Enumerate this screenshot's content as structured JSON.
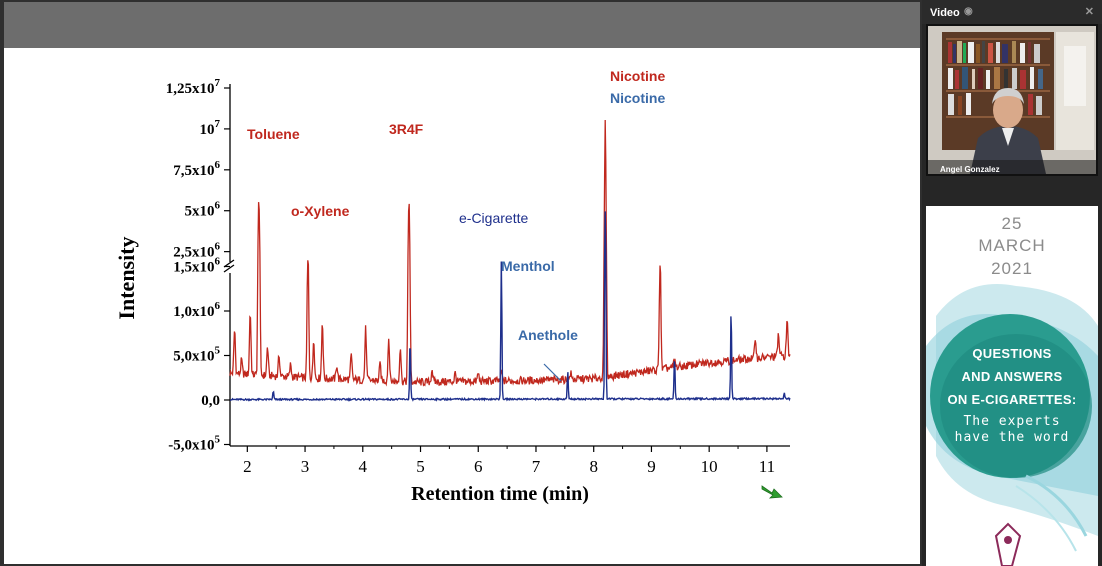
{
  "video_panel": {
    "title": "Video",
    "participant_name": "Angel Gonzalez",
    "pin_icon": "pin-icon",
    "close_icon": "close-icon"
  },
  "poster": {
    "day": "25",
    "month": "MARCH",
    "year": "2021",
    "line1": "QUESTIONS",
    "line2": "AND ANSWERS",
    "line3": "ON E-CIGARETTES:",
    "sub1": "The experts",
    "sub2": "have the word"
  },
  "chart_data": {
    "type": "line",
    "xlabel": "Retention time (min)",
    "ylabel": "Intensity",
    "xlim": [
      1.7,
      11.4
    ],
    "x_ticks": [
      2,
      3,
      4,
      5,
      6,
      7,
      8,
      9,
      10,
      11
    ],
    "y_axis_broken": true,
    "y_ticks_lower": [
      {
        "value": -500000,
        "label": "-5,0x10",
        "exp": "5"
      },
      {
        "value": 0,
        "label": "0,0",
        "exp": ""
      },
      {
        "value": 500000,
        "label": "5,0x10",
        "exp": "5"
      },
      {
        "value": 1000000,
        "label": "1,0x10",
        "exp": "6"
      },
      {
        "value": 1500000,
        "label": "1,5x10",
        "exp": "6"
      }
    ],
    "y_ticks_upper": [
      {
        "value": 2500000,
        "label": "2,5x10",
        "exp": "6"
      },
      {
        "value": 5000000,
        "label": "5x10",
        "exp": "6"
      },
      {
        "value": 7500000,
        "label": "7,5x10",
        "exp": "6"
      },
      {
        "value": 10000000,
        "label": "10",
        "exp": "7"
      },
      {
        "value": 12500000,
        "label": "1,25x10",
        "exp": "7"
      }
    ],
    "series": [
      {
        "name": "3R4F",
        "color": "#c0281e",
        "baseline": [
          [
            1.7,
            300000
          ],
          [
            3,
            250000
          ],
          [
            5,
            200000
          ],
          [
            7,
            220000
          ],
          [
            8,
            240000
          ],
          [
            9,
            330000
          ],
          [
            10,
            420000
          ],
          [
            11,
            480000
          ],
          [
            11.4,
            500000
          ]
        ],
        "peaks": [
          [
            1.78,
            800000
          ],
          [
            1.9,
            450000
          ],
          [
            2.05,
            1000000
          ],
          [
            2.2,
            5800000
          ],
          [
            2.35,
            600000
          ],
          [
            2.55,
            500000
          ],
          [
            2.75,
            400000
          ],
          [
            3.05,
            2000000
          ],
          [
            3.15,
            700000
          ],
          [
            3.3,
            900000
          ],
          [
            3.55,
            400000
          ],
          [
            3.8,
            500000
          ],
          [
            4.05,
            800000
          ],
          [
            4.3,
            400000
          ],
          [
            4.45,
            700000
          ],
          [
            4.65,
            600000
          ],
          [
            4.8,
            5700000
          ],
          [
            5.2,
            350000
          ],
          [
            5.6,
            300000
          ],
          [
            6.0,
            300000
          ],
          [
            6.4,
            320000
          ],
          [
            7.6,
            300000
          ],
          [
            8.2,
            10600000
          ],
          [
            9.15,
            1700000
          ],
          [
            9.4,
            450000
          ],
          [
            10.8,
            700000
          ],
          [
            11.2,
            750000
          ],
          [
            11.35,
            900000
          ]
        ]
      },
      {
        "name": "e-Cigarette",
        "color": "#1e2f8c",
        "baseline": [
          [
            1.7,
            5000
          ],
          [
            11.4,
            15000
          ]
        ],
        "peaks": [
          [
            2.45,
            100000
          ],
          [
            4.82,
            700000
          ],
          [
            6.4,
            1900000
          ],
          [
            7.55,
            320000
          ],
          [
            8.2,
            5000000
          ],
          [
            9.4,
            500000
          ],
          [
            10.38,
            1050000
          ],
          [
            11.3,
            80000
          ]
        ]
      }
    ],
    "annotations": [
      {
        "text": "Toluene",
        "color": "#c0281e"
      },
      {
        "text": "o-Xylene",
        "color": "#c0281e"
      },
      {
        "text": "3R4F",
        "color": "#c0281e"
      },
      {
        "text": "e-Cigarette",
        "color": "#1e2f8c"
      },
      {
        "text": "Menthol",
        "color": "#3a6aa8"
      },
      {
        "text": "Anethole",
        "color": "#3a6aa8"
      },
      {
        "text": "Nicotine",
        "color": "#c0281e"
      },
      {
        "text": "Nicotine",
        "color": "#3a6aa8"
      }
    ]
  }
}
